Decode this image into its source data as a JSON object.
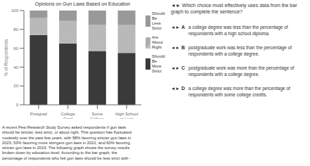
{
  "chart_data": {
    "type": "bar",
    "title": "Opinions on Gun Laws Based on Education",
    "categories": [
      "Postgrad",
      "College\nGrad",
      "Some\nCollege",
      "High School\nor Less"
    ],
    "series": [
      {
        "name": "Should\nBe\nMore\nStrict",
        "color": "#3a3a3a",
        "values": [
          74,
          65,
          57,
          55
        ]
      },
      {
        "name": "Are\nAbout\nRight",
        "color": "#c0c0c0",
        "values": [
          18,
          24,
          28,
          30
        ]
      },
      {
        "name": "Should\nBe\nLess\nStrict",
        "color": "#999999",
        "values": [
          8,
          11,
          15,
          15
        ]
      }
    ],
    "stacked": true,
    "ylabel": "% of Respondents",
    "ylim": [
      0,
      100
    ],
    "yticks": [
      0,
      20,
      40,
      60,
      80,
      100
    ],
    "grid": false,
    "legend": "right",
    "annotations": [
      "◄► Which choice most effectively uses data from the bar graph to complete the sentence?",
      "◄►",
      "A",
      "a college degree was less than the percentage of\nrespondents with a high school diploma.",
      "◄►",
      "B",
      "postgraduate work was less than the percentage of\nrespondents with a college degree.",
      "◄►",
      "C",
      "postgraduate work was more than the percentage of\nrespondents with a college degree.",
      "◄►",
      "D",
      "a college degree was more than the percentage of\nrespondents with some college credits.",
      "A recent Pew Research Study Survey asked respondents if gun laws\nshould be stricter, less strict, or about right. This question has fluctuated\nmodestly over the past few years, with 58% favoring stricter gun laws in\n2023, 53% favoring more stringent gun laws in 2021, and 60% favoring\nstricter gun laws in 2019. The following graph shows the survey results\nbroken down by education level. According to the bar graph, the\npercentage of respondents who felt gun laws should be less strict with -"
    ]
  }
}
